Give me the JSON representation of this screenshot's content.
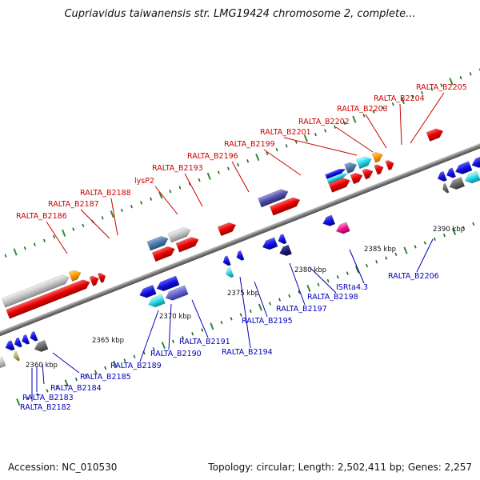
{
  "header": {
    "title": "Cupriavidus taiwanensis str. LMG19424 chromosome 2, complete..."
  },
  "footer": {
    "accession": "Accession: NC_010530",
    "summary": "Topology: circular; Length: 2,502,411 bp; Genes: 2,257"
  },
  "colors": {
    "backbone": "#8c8c8c",
    "forward_label": "#cc0000",
    "reverse_label": "#0000bb",
    "tick_major": "#2f8a2f",
    "tick_minor": "#1a6a1a"
  },
  "scale_labels": [
    "2360 kbp",
    "2365 kbp",
    "2370 kbp",
    "2375 kbp",
    "2380 kbp",
    "2385 kbp",
    "2390 kbp"
  ],
  "forward_labels": [
    "RALTA_B2186",
    "RALTA_B2187",
    "RALTA_B2188",
    "lysP2",
    "RALTA_B2193",
    "RALTA_B2196",
    "RALTA_B2199",
    "RALTA_B2201",
    "RALTA_B2202",
    "RALTA_B2203",
    "RALTA_B2204",
    "RALTA_B2205"
  ],
  "reverse_labels": [
    "RALTA_B2182",
    "RALTA_B2183",
    "RALTA_B2184",
    "RALTA_B2185",
    "RALTA_B2189",
    "RALTA_B2190",
    "RALTA_B2191",
    "RALTA_B2194",
    "RALTA_B2195",
    "RALTA_B2197",
    "RALTA_B2198",
    "ISRta4.3",
    "RALTA_B2206"
  ]
}
